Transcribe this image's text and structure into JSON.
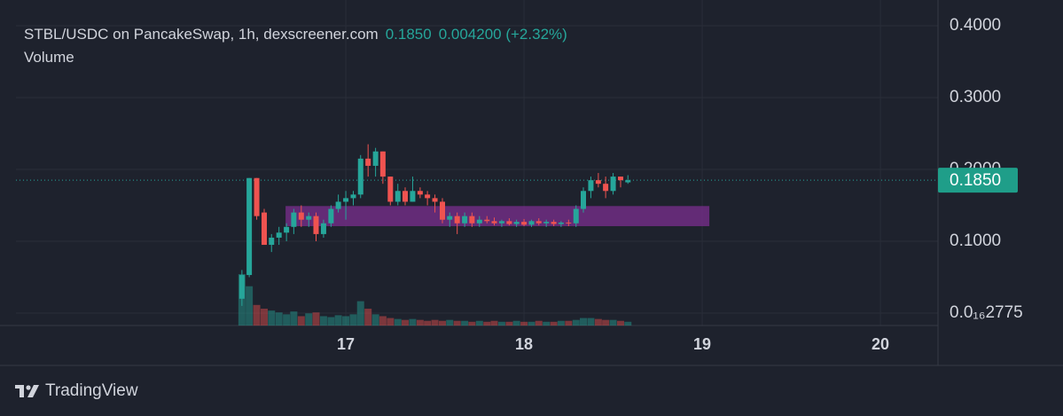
{
  "chart_data": {
    "type": "candlestick",
    "title": "STBL/USDC on PancakeSwap, 1h, dexscreener.com",
    "last_price": {
      "value": 0.185,
      "label": "0.1850"
    },
    "change": {
      "value": 0.0042,
      "label": "0.004200"
    },
    "change_pct": {
      "value": 2.32,
      "label": "(+2.32%)"
    },
    "volume_label": "Volume",
    "up_color": "#26a69a",
    "down_color": "#ef5350",
    "grid": true,
    "xlim": [
      15.149,
      20.323
    ],
    "xticks": [
      17,
      18,
      19,
      20
    ],
    "ylim": [
      -0.0173,
      0.4358
    ],
    "yticks": [
      {
        "value": 2.775e-17,
        "label": "0.0₁₆2775"
      },
      {
        "value": 0.1,
        "label": "0.1000"
      },
      {
        "value": 0.2,
        "label": "0.2000"
      },
      {
        "value": 0.3,
        "label": "0.3000"
      },
      {
        "value": 0.4,
        "label": "0.4000"
      }
    ],
    "zone": {
      "x": [
        16.662,
        19.04
      ],
      "y": [
        0.121,
        0.149
      ],
      "color": "#7b2f8f"
    },
    "x": [
      16.417,
      16.458,
      16.5,
      16.542,
      16.583,
      16.625,
      16.667,
      16.708,
      16.75,
      16.792,
      16.833,
      16.875,
      16.917,
      16.958,
      17,
      17.042,
      17.083,
      17.125,
      17.167,
      17.208,
      17.25,
      17.292,
      17.333,
      17.375,
      17.417,
      17.458,
      17.5,
      17.542,
      17.583,
      17.625,
      17.667,
      17.708,
      17.75,
      17.792,
      17.833,
      17.875,
      17.917,
      17.958,
      18,
      18.042,
      18.083,
      18.125,
      18.167,
      18.208,
      18.25,
      18.292,
      18.333,
      18.375,
      18.417,
      18.458,
      18.5,
      18.542,
      18.583
    ],
    "open": [
      0.02,
      0.053,
      0.188,
      0.14,
      0.095,
      0.105,
      0.112,
      0.12,
      0.14,
      0.13,
      0.135,
      0.11,
      0.125,
      0.145,
      0.155,
      0.16,
      0.165,
      0.215,
      0.205,
      0.225,
      0.19,
      0.155,
      0.17,
      0.155,
      0.17,
      0.165,
      0.16,
      0.155,
      0.13,
      0.135,
      0.125,
      0.135,
      0.125,
      0.13,
      0.128,
      0.125,
      0.128,
      0.124,
      0.127,
      0.123,
      0.128,
      0.125,
      0.127,
      0.124,
      0.126,
      0.125,
      0.145,
      0.17,
      0.185,
      0.18,
      0.17,
      0.19,
      0.182
    ],
    "high": [
      0.06,
      0.188,
      0.188,
      0.145,
      0.11,
      0.12,
      0.125,
      0.145,
      0.15,
      0.14,
      0.14,
      0.13,
      0.15,
      0.165,
      0.17,
      0.17,
      0.22,
      0.235,
      0.23,
      0.225,
      0.19,
      0.18,
      0.175,
      0.19,
      0.175,
      0.17,
      0.165,
      0.16,
      0.14,
      0.14,
      0.14,
      0.14,
      0.135,
      0.135,
      0.133,
      0.13,
      0.132,
      0.13,
      0.131,
      0.13,
      0.132,
      0.13,
      0.13,
      0.128,
      0.13,
      0.15,
      0.175,
      0.19,
      0.195,
      0.19,
      0.195,
      0.19,
      0.192
    ],
    "low": [
      0.01,
      0.05,
      0.13,
      0.095,
      0.085,
      0.095,
      0.1,
      0.11,
      0.12,
      0.12,
      0.1,
      0.105,
      0.12,
      0.14,
      0.13,
      0.15,
      0.16,
      0.19,
      0.19,
      0.18,
      0.15,
      0.15,
      0.15,
      0.155,
      0.16,
      0.15,
      0.14,
      0.125,
      0.12,
      0.11,
      0.12,
      0.12,
      0.12,
      0.125,
      0.122,
      0.12,
      0.122,
      0.12,
      0.121,
      0.12,
      0.122,
      0.12,
      0.121,
      0.12,
      0.121,
      0.12,
      0.14,
      0.16,
      0.175,
      0.16,
      0.165,
      0.175,
      0.18
    ],
    "close": [
      0.053,
      0.188,
      0.135,
      0.095,
      0.105,
      0.112,
      0.12,
      0.14,
      0.13,
      0.135,
      0.11,
      0.125,
      0.145,
      0.155,
      0.16,
      0.165,
      0.215,
      0.205,
      0.225,
      0.19,
      0.155,
      0.17,
      0.155,
      0.17,
      0.165,
      0.16,
      0.155,
      0.13,
      0.135,
      0.125,
      0.135,
      0.125,
      0.13,
      0.128,
      0.125,
      0.128,
      0.124,
      0.127,
      0.123,
      0.128,
      0.125,
      0.127,
      0.124,
      0.126,
      0.125,
      0.145,
      0.17,
      0.185,
      0.18,
      0.17,
      0.19,
      0.185,
      0.185
    ],
    "volume": [
      55,
      42,
      22,
      18,
      16,
      14,
      12,
      15,
      10,
      13,
      14,
      10,
      9,
      11,
      10,
      12,
      26,
      18,
      12,
      10,
      8,
      7,
      6,
      7,
      6,
      5,
      6,
      5,
      6,
      5,
      5,
      4,
      5,
      4,
      5,
      4,
      4,
      5,
      4,
      4,
      5,
      4,
      4,
      5,
      5,
      6,
      8,
      8,
      7,
      6,
      6,
      5,
      4
    ]
  },
  "footer": {
    "brand": "TradingView"
  }
}
